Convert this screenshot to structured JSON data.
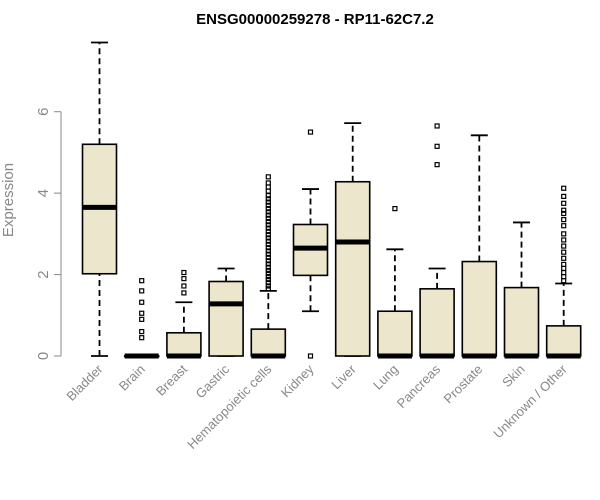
{
  "chart_data": {
    "type": "boxplot",
    "title": "ENSG00000259278 - RP11-62C7.2",
    "ylabel": "Expression",
    "ylim": [
      0,
      7.7
    ],
    "yticks": [
      0,
      2,
      4,
      6
    ],
    "categories": [
      "Bladder",
      "Brain",
      "Breast",
      "Gastric",
      "Hematopoietic cells",
      "Kidney",
      "Liver",
      "Lung",
      "Pancreas",
      "Prostate",
      "Skin",
      "Unknown / Other"
    ],
    "boxes": [
      {
        "min": 0,
        "q1": 2.02,
        "median": 3.65,
        "q3": 5.2,
        "max": 7.7,
        "outliers": []
      },
      {
        "min": 0,
        "q1": 0,
        "median": 0,
        "q3": 0,
        "max": 0,
        "outliers": [
          0.45,
          0.6,
          0.9,
          1.05,
          1.32,
          1.6,
          1.85
        ]
      },
      {
        "min": 0,
        "q1": 0,
        "median": 0,
        "q3": 0.57,
        "max": 1.32,
        "outliers": [
          1.55,
          1.72,
          1.9,
          2.05
        ]
      },
      {
        "min": 0,
        "q1": 0,
        "median": 1.28,
        "q3": 1.83,
        "max": 2.15,
        "outliers": []
      },
      {
        "min": 0,
        "q1": 0,
        "median": 0,
        "q3": 0.66,
        "max": 1.6,
        "outliers": [
          1.65,
          1.72,
          1.8,
          1.88,
          1.95,
          2.03,
          2.1,
          2.18,
          2.26,
          2.34,
          2.42,
          2.5,
          2.58,
          2.66,
          2.74,
          2.82,
          2.9,
          2.98,
          3.06,
          3.14,
          3.22,
          3.3,
          3.38,
          3.46,
          3.54,
          3.62,
          3.7,
          3.78,
          3.86,
          3.94,
          4.05,
          4.15,
          4.25,
          4.4
        ]
      },
      {
        "min": 1.1,
        "q1": 1.98,
        "median": 2.65,
        "q3": 3.23,
        "max": 4.1,
        "outliers": [
          0,
          5.5
        ]
      },
      {
        "min": 0,
        "q1": 0,
        "median": 2.8,
        "q3": 4.28,
        "max": 5.72,
        "outliers": []
      },
      {
        "min": 0,
        "q1": 0,
        "median": 0,
        "q3": 1.1,
        "max": 2.62,
        "outliers": [
          3.62
        ]
      },
      {
        "min": 0,
        "q1": 0,
        "median": 0,
        "q3": 1.65,
        "max": 2.15,
        "outliers": [
          4.7,
          5.15,
          5.65
        ]
      },
      {
        "min": 0,
        "q1": 0,
        "median": 0,
        "q3": 2.32,
        "max": 5.42,
        "outliers": []
      },
      {
        "min": 0,
        "q1": 0,
        "median": 0,
        "q3": 1.68,
        "max": 3.28,
        "outliers": []
      },
      {
        "min": 0,
        "q1": 0,
        "median": 0,
        "q3": 0.74,
        "max": 1.78,
        "outliers": [
          1.85,
          1.95,
          2.05,
          2.15,
          2.25,
          2.4,
          2.55,
          2.7,
          2.85,
          3.0,
          3.2,
          3.35,
          3.5,
          3.58,
          3.75,
          3.92,
          4.12
        ]
      }
    ]
  }
}
